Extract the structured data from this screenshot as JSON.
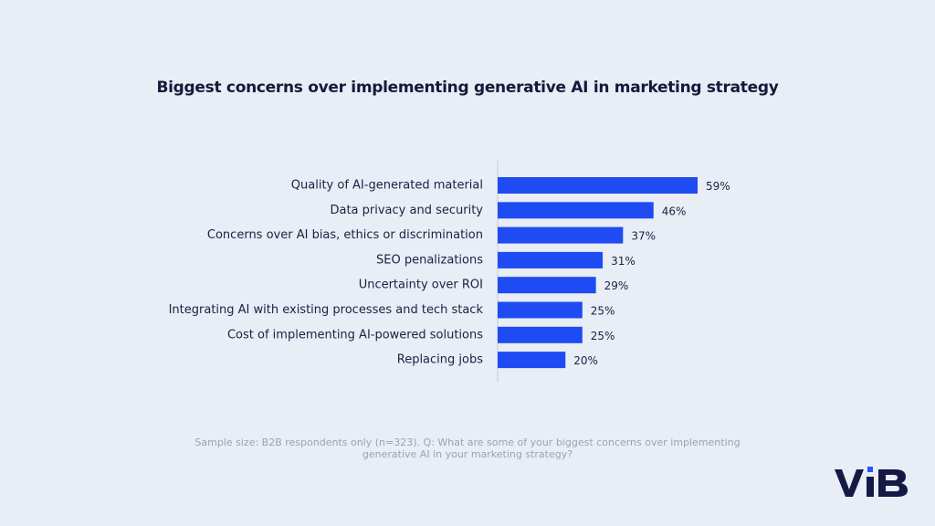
{
  "chart_data": {
    "type": "bar",
    "orientation": "horizontal",
    "title": "Biggest concerns over implementing generative AI in marketing strategy",
    "categories": [
      "Quality of AI-generated material",
      "Data privacy and security",
      "Concerns over AI bias, ethics or discrimination",
      "SEO penalizations",
      "Uncertainty over ROI",
      "Integrating AI with existing processes and tech stack",
      "Cost of implementing AI-powered solutions",
      "Replacing jobs"
    ],
    "values": [
      59,
      46,
      37,
      31,
      29,
      25,
      25,
      20
    ],
    "value_labels": [
      "59%",
      "46%",
      "37%",
      "31%",
      "29%",
      "25%",
      "25%",
      "20%"
    ],
    "unit": "%",
    "xlim": [
      0,
      59
    ],
    "grid": false,
    "bar_color": "#1f4bf2"
  },
  "footnote": "Sample size: B2B respondents only (n=323). Q: What are some of your biggest concerns over implementing generative AI in your marketing strategy?",
  "logo_text": "VIB",
  "colors": {
    "background": "#e8edf6",
    "title": "#151a3a",
    "label": "#1c2140",
    "axis": "#c3c9d6",
    "logo": "#141a44",
    "logo_accent": "#2f55f5"
  }
}
